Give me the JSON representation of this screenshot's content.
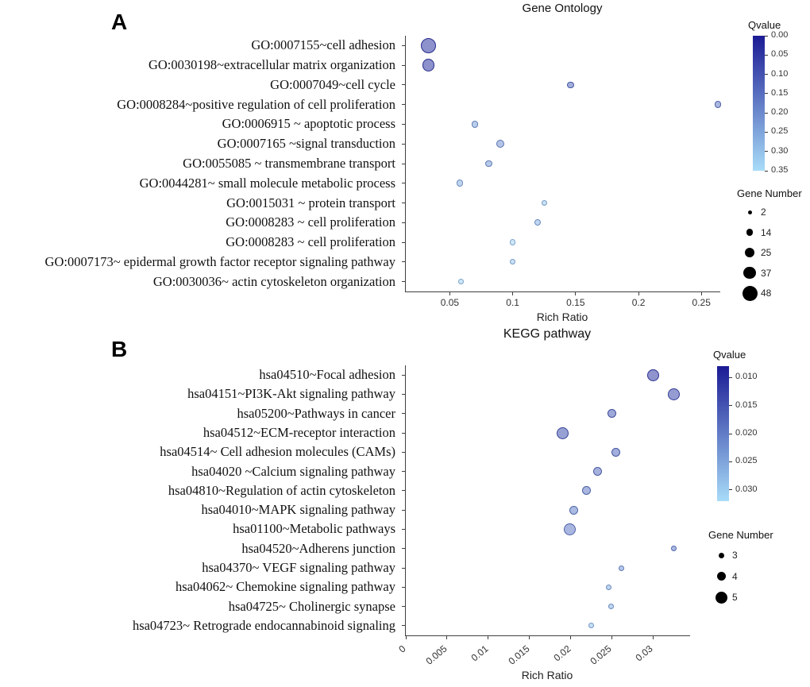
{
  "panels": {
    "a_label": "A",
    "b_label": "B"
  },
  "chart_data": [
    {
      "type": "scatter",
      "panel": "A",
      "title": "Gene Ontology",
      "xlabel": "Rich Ratio",
      "xlim": [
        0.015,
        0.265
      ],
      "xticks": [
        {
          "v": 0.05,
          "label": "0.05"
        },
        {
          "v": 0.1,
          "label": "0.1"
        },
        {
          "v": 0.15,
          "label": "0.15"
        },
        {
          "v": 0.2,
          "label": "0.2"
        },
        {
          "v": 0.25,
          "label": "0.25"
        }
      ],
      "colorbar": {
        "title": "Qvalue",
        "scale_min": 0.0,
        "scale_max": 0.35,
        "color_dark": "#1b1b94",
        "color_light": "#a8dcf8",
        "ticks": [
          {
            "v": 0.0,
            "label": "0.00"
          },
          {
            "v": 0.05,
            "label": "0.05"
          },
          {
            "v": 0.1,
            "label": "0.10"
          },
          {
            "v": 0.15,
            "label": "0.15"
          },
          {
            "v": 0.2,
            "label": "0.20"
          },
          {
            "v": 0.25,
            "label": "0.25"
          },
          {
            "v": 0.3,
            "label": "0.30"
          },
          {
            "v": 0.35,
            "label": "0.35"
          }
        ]
      },
      "size_legend": {
        "title": "Gene Number",
        "values": [
          2,
          14,
          25,
          37,
          48
        ]
      },
      "points": [
        {
          "category": "GO:0007155~cell adhesion",
          "x": 0.033,
          "qvalue": 0.05,
          "gene_number": 48
        },
        {
          "category": "GO:0030198~extracellular matrix organization",
          "x": 0.033,
          "qvalue": 0.05,
          "gene_number": 37
        },
        {
          "category": "GO:0007049~cell cycle",
          "x": 0.146,
          "qvalue": 0.15,
          "gene_number": 14
        },
        {
          "category": "GO:0008284~positive regulation of cell proliferation",
          "x": 0.263,
          "qvalue": 0.18,
          "gene_number": 14
        },
        {
          "category": "GO:0006915 ~ apoptotic process",
          "x": 0.07,
          "qvalue": 0.25,
          "gene_number": 14
        },
        {
          "category": "GO:0007165 ~signal transduction",
          "x": 0.09,
          "qvalue": 0.22,
          "gene_number": 20
        },
        {
          "category": "GO:0055085 ~ transmembrane transport",
          "x": 0.081,
          "qvalue": 0.24,
          "gene_number": 14
        },
        {
          "category": "GO:0044281~ small molecule metabolic process",
          "x": 0.058,
          "qvalue": 0.28,
          "gene_number": 14
        },
        {
          "category": "GO:0015031 ~ protein transport",
          "x": 0.125,
          "qvalue": 0.32,
          "gene_number": 10
        },
        {
          "category": "GO:0008283 ~ cell proliferation",
          "x": 0.12,
          "qvalue": 0.28,
          "gene_number": 12
        },
        {
          "category": "GO:0008283 ~ cell proliferation",
          "x": 0.1,
          "qvalue": 0.34,
          "gene_number": 10
        },
        {
          "category": "GO:0007173~ epidermal growth factor receptor signaling pathway",
          "x": 0.1,
          "qvalue": 0.32,
          "gene_number": 8
        },
        {
          "category": "GO:0030036~ actin cytoskeleton organization",
          "x": 0.059,
          "qvalue": 0.34,
          "gene_number": 8
        }
      ]
    },
    {
      "type": "scatter",
      "panel": "B",
      "title": "KEGG pathway",
      "xlabel": "Rich Ratio",
      "xlim": [
        0,
        0.0345
      ],
      "xticks": [
        {
          "v": 0,
          "label": "0"
        },
        {
          "v": 0.005,
          "label": "0.005"
        },
        {
          "v": 0.01,
          "label": "0.01"
        },
        {
          "v": 0.015,
          "label": "0.015"
        },
        {
          "v": 0.02,
          "label": "0.02"
        },
        {
          "v": 0.025,
          "label": "0.025"
        },
        {
          "v": 0.03,
          "label": "0.03"
        }
      ],
      "colorbar": {
        "title": "Qvalue",
        "scale_min": 0.008,
        "scale_max": 0.032,
        "color_dark": "#1b1b94",
        "color_light": "#a8dcf8",
        "ticks": [
          {
            "v": 0.01,
            "label": "0.010"
          },
          {
            "v": 0.015,
            "label": "0.015"
          },
          {
            "v": 0.02,
            "label": "0.020"
          },
          {
            "v": 0.025,
            "label": "0.025"
          },
          {
            "v": 0.03,
            "label": "0.030"
          }
        ]
      },
      "size_legend": {
        "title": "Gene Number",
        "values": [
          3,
          4,
          5
        ]
      },
      "points": [
        {
          "category": "hsa04510~Focal adhesion",
          "x": 0.03,
          "qvalue": 0.012,
          "gene_number": 5
        },
        {
          "category": "hsa04151~PI3K-Akt signaling pathway",
          "x": 0.0325,
          "qvalue": 0.014,
          "gene_number": 5
        },
        {
          "category": "hsa05200~Pathways in cancer",
          "x": 0.025,
          "qvalue": 0.017,
          "gene_number": 4
        },
        {
          "category": "hsa04512~ECM-receptor interaction",
          "x": 0.019,
          "qvalue": 0.015,
          "gene_number": 5
        },
        {
          "category": "hsa04514~ Cell adhesion molecules (CAMs)",
          "x": 0.0255,
          "qvalue": 0.018,
          "gene_number": 4
        },
        {
          "category": "hsa04020 ~Calcium signaling pathway",
          "x": 0.0233,
          "qvalue": 0.019,
          "gene_number": 4
        },
        {
          "category": "hsa04810~Regulation of actin cytoskeleton",
          "x": 0.0219,
          "qvalue": 0.02,
          "gene_number": 4
        },
        {
          "category": "hsa04010~MAPK signaling pathway",
          "x": 0.0204,
          "qvalue": 0.021,
          "gene_number": 4
        },
        {
          "category": "hsa01100~Metabolic pathways",
          "x": 0.0199,
          "qvalue": 0.02,
          "gene_number": 5
        },
        {
          "category": "hsa04520~Adherens junction",
          "x": 0.0325,
          "qvalue": 0.021,
          "gene_number": 3
        },
        {
          "category": "hsa04370~ VEGF signaling pathway",
          "x": 0.0262,
          "qvalue": 0.024,
          "gene_number": 3
        },
        {
          "category": "hsa04062~ Chemokine signaling pathway",
          "x": 0.0246,
          "qvalue": 0.027,
          "gene_number": 3
        },
        {
          "category": "hsa04725~ Cholinergic synapse",
          "x": 0.0249,
          "qvalue": 0.027,
          "gene_number": 3
        },
        {
          "category": "hsa04723~ Retrograde endocannabinoid signaling",
          "x": 0.0225,
          "qvalue": 0.029,
          "gene_number": 3
        }
      ]
    }
  ]
}
